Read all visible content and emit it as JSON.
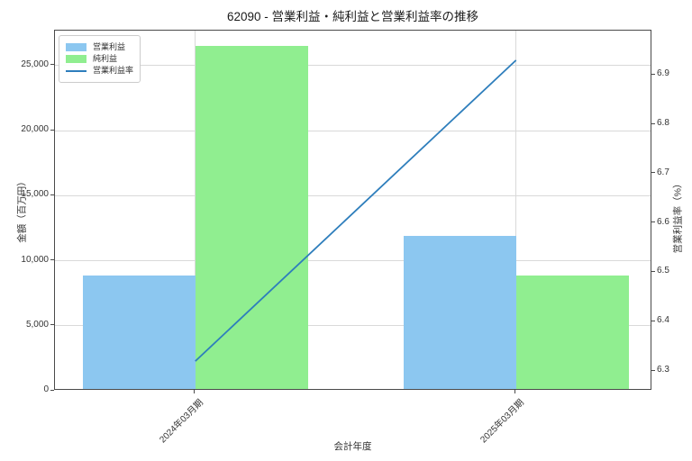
{
  "chart_data": {
    "type": "bar+line combo (dual y-axis)",
    "title": "62090 - 営業利益・純利益と営業利益率の推移",
    "categories": [
      "2024年03月期",
      "2025年03月期"
    ],
    "series": [
      {
        "name": "営業利益",
        "kind": "bar",
        "axis": "left",
        "color": "#8cc7f0",
        "values": [
          8750,
          11800
        ]
      },
      {
        "name": "純利益",
        "kind": "bar",
        "axis": "left",
        "color": "#90ee90",
        "values": [
          26400,
          8750
        ]
      },
      {
        "name": "営業利益率",
        "kind": "line",
        "axis": "right",
        "color": "#2e7ebc",
        "values": [
          6.32,
          6.93
        ]
      }
    ],
    "xlabel": "会計年度",
    "ylabel_left": "金額（百万円）",
    "ylabel_right": "営業利益率（%）",
    "y_left": {
      "range": [
        0,
        27700
      ],
      "ticks": [
        0,
        5000,
        10000,
        15000,
        20000,
        25000
      ]
    },
    "y_right": {
      "range": [
        6.26,
        6.99
      ],
      "ticks": [
        6.3,
        6.4,
        6.5,
        6.6,
        6.7,
        6.8,
        6.9
      ]
    },
    "grid": true,
    "legend_position": "upper-left",
    "colors": {
      "grid": "#d9d9d9",
      "spine": "#4a4a4a",
      "tick_text": "#333333",
      "title_text": "#1a1a1a"
    }
  }
}
